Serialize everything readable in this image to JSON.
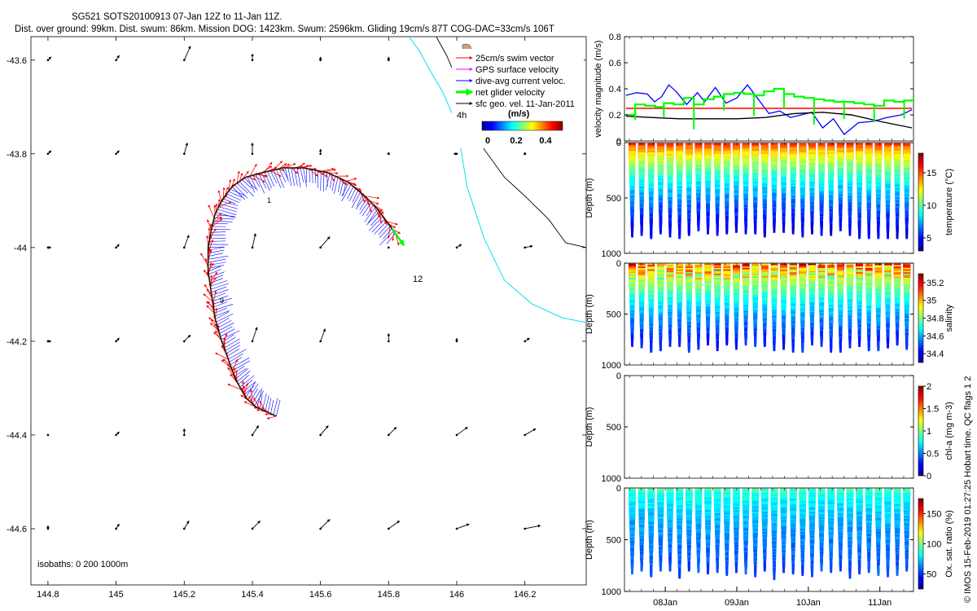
{
  "title": {
    "line1": "SG521 SOTS20100913 07-Jan 12Z to 11-Jan 11Z.",
    "line2": "Dist. over ground: 99km. Dist. swum: 86km. Mission DOG: 1423km. Swum: 2596km. Gliding 19cm/s 87T COG-DAC=33cm/s 106T"
  },
  "credit": "© IMOS 15-Feb-2019 01:27:25 Hobart time. QC flags 1  2",
  "colors": {
    "swim": "#ff0000",
    "gps": "#ff00ff",
    "dac": "#0000ff",
    "net": "#00ff00",
    "geo": "#000000",
    "isobath200": "#00e5ee",
    "isobath1000": "#000000",
    "track": "#2a1a00",
    "land": "#c8a27a"
  },
  "chart_data": [
    {
      "type": "scatter",
      "name": "track-map",
      "xlim": [
        144.75,
        146.38
      ],
      "ylim": [
        -44.72,
        -43.55
      ],
      "xticks": [
        "144.8",
        "145",
        "145.2",
        "145.4",
        "145.6",
        "145.8",
        "146",
        "146.2"
      ],
      "xtick_values": [
        144.8,
        145.0,
        145.2,
        145.4,
        145.6,
        145.8,
        146.0,
        146.2
      ],
      "yticks": [
        "-43.6",
        "-43.8",
        "-44",
        "-44.2",
        "-44.4",
        "-44.6"
      ],
      "ytick_values": [
        -43.6,
        -43.8,
        -44.0,
        -44.2,
        -44.4,
        -44.6
      ],
      "track": {
        "lon": [
          145.47,
          145.44,
          145.41,
          145.38,
          145.35,
          145.33,
          145.31,
          145.29,
          145.28,
          145.27,
          145.27,
          145.28,
          145.29,
          145.31,
          145.34,
          145.38,
          145.43,
          145.49,
          145.55,
          145.62,
          145.68,
          145.73,
          145.77,
          145.8,
          145.82
        ],
        "lat": [
          -44.36,
          -44.35,
          -44.34,
          -44.32,
          -44.28,
          -44.24,
          -44.2,
          -44.15,
          -44.1,
          -44.05,
          -44.0,
          -43.96,
          -43.93,
          -43.9,
          -43.87,
          -43.85,
          -43.84,
          -43.83,
          -43.83,
          -43.84,
          -43.86,
          -43.89,
          -43.92,
          -43.95,
          -43.97
        ]
      },
      "isobath200": {
        "lon": [
          145.86,
          145.89,
          145.92,
          145.96,
          145.99,
          146.01,
          146.03,
          146.08,
          146.14,
          146.22,
          146.31,
          146.38
        ],
        "lat": [
          -43.55,
          -43.58,
          -43.62,
          -43.67,
          -43.72,
          -43.78,
          -43.87,
          -43.98,
          -44.07,
          -44.12,
          -44.15,
          -44.16
        ]
      },
      "isobath1000": {
        "lon": [
          145.94,
          145.97,
          146.0,
          146.04,
          146.08,
          146.14,
          146.2,
          146.27,
          146.32,
          146.38
        ],
        "lat": [
          -43.55,
          -43.59,
          -43.64,
          -43.7,
          -43.79,
          -43.85,
          -43.89,
          -43.94,
          -43.99,
          -44.0
        ]
      },
      "geo_vectors": {
        "lon": [
          144.8,
          145.0,
          145.2,
          145.4,
          145.6,
          145.8,
          146.0,
          146.2
        ],
        "lat": [
          -43.6,
          -43.8,
          -44.0,
          -44.2,
          -44.4,
          -44.6
        ],
        "u": [
          [
            0.02,
            0.02,
            0.04,
            0.0,
            0.0,
            0.0,
            -0.02,
            0.0
          ],
          [
            0.02,
            0.02,
            0.02,
            0.0,
            0.0,
            0.0,
            -0.02,
            0.0
          ],
          [
            0.02,
            0.02,
            0.03,
            0.02,
            0.06,
            0.0,
            0.03,
            0.05
          ],
          [
            0.02,
            0.02,
            0.04,
            0.03,
            0.03,
            0.0,
            0.0,
            0.03
          ],
          [
            0.0,
            0.02,
            0.0,
            0.04,
            0.05,
            0.05,
            0.07,
            0.07
          ],
          [
            0.0,
            0.02,
            0.03,
            0.05,
            0.06,
            0.07,
            0.08,
            0.1
          ]
        ],
        "v": [
          [
            0.02,
            0.03,
            0.09,
            0.04,
            0.02,
            0.02,
            0.01,
            0.02
          ],
          [
            0.02,
            0.02,
            0.07,
            0.07,
            0.03,
            0.01,
            0.0,
            0.01
          ],
          [
            0.0,
            0.02,
            0.08,
            0.09,
            0.07,
            0.0,
            0.02,
            0.01
          ],
          [
            0.0,
            0.02,
            0.04,
            0.09,
            0.08,
            0.05,
            0.02,
            0.02
          ],
          [
            0.0,
            0.02,
            0.04,
            0.06,
            0.06,
            0.05,
            0.05,
            0.04
          ],
          [
            0.02,
            0.03,
            0.05,
            0.05,
            0.06,
            0.05,
            0.03,
            0.02
          ]
        ]
      },
      "legend": {
        "items": [
          "25cm/s swim vector",
          "GPS surface velocity",
          "dive-avg current veloc.",
          "net glider velocity",
          "sfc geo. vel. 11-Jan-2011"
        ],
        "colorbar_label": "(m/s)",
        "colorbar_ticks": [
          "0",
          "0.2",
          "0.4"
        ],
        "scale_label": "4h"
      },
      "annotations": [
        "12",
        "9",
        "1"
      ],
      "isobaths_label": "isobaths: 0   200  1000m"
    },
    {
      "type": "line",
      "name": "velocity-magnitude",
      "ylabel": "velocity magnitude (m/s)",
      "ylim": [
        0,
        0.8
      ],
      "yticks": [
        "0",
        "0.2",
        "0.4",
        "0.6",
        "0.8"
      ],
      "xlim": [
        7.43,
        11.47
      ],
      "series": [
        {
          "name": "dive-avg current",
          "color": "#0000ff",
          "x": [
            7.45,
            7.6,
            7.75,
            7.85,
            7.95,
            8.05,
            8.15,
            8.3,
            8.45,
            8.55,
            8.7,
            8.85,
            9.0,
            9.15,
            9.3,
            9.45,
            9.6,
            9.75,
            9.9,
            10.05,
            10.2,
            10.35,
            10.5,
            10.7,
            10.9,
            11.1,
            11.3,
            11.45
          ],
          "y": [
            0.35,
            0.37,
            0.36,
            0.3,
            0.34,
            0.43,
            0.38,
            0.28,
            0.37,
            0.3,
            0.41,
            0.29,
            0.33,
            0.43,
            0.32,
            0.21,
            0.23,
            0.18,
            0.2,
            0.22,
            0.1,
            0.17,
            0.05,
            0.14,
            0.15,
            0.18,
            0.2,
            0.24
          ]
        },
        {
          "name": "swim",
          "color": "#ff0000",
          "x": [
            7.45,
            11.45
          ],
          "y": [
            0.25,
            0.25
          ]
        },
        {
          "name": "sfc geo",
          "color": "#000000",
          "x": [
            7.45,
            7.8,
            8.2,
            8.6,
            9.0,
            9.4,
            9.8,
            10.2,
            10.6,
            11.0,
            11.45
          ],
          "y": [
            0.19,
            0.18,
            0.17,
            0.17,
            0.17,
            0.18,
            0.21,
            0.22,
            0.2,
            0.15,
            0.1
          ]
        },
        {
          "name": "net glider",
          "color": "#00ff00",
          "x": [
            7.45,
            7.58,
            7.72,
            7.86,
            7.98,
            8.12,
            8.26,
            8.4,
            8.54,
            8.68,
            8.82,
            8.96,
            9.1,
            9.24,
            9.38,
            9.52,
            9.66,
            9.8,
            9.94,
            10.08,
            10.22,
            10.36,
            10.5,
            10.64,
            10.78,
            10.92,
            11.06,
            11.2,
            11.34,
            11.47
          ],
          "y": [
            0.2,
            0.28,
            0.27,
            0.26,
            0.29,
            0.28,
            0.33,
            0.28,
            0.32,
            0.34,
            0.36,
            0.37,
            0.36,
            0.35,
            0.38,
            0.4,
            0.36,
            0.34,
            0.33,
            0.32,
            0.31,
            0.3,
            0.3,
            0.29,
            0.28,
            0.27,
            0.31,
            0.3,
            0.31,
            0.32
          ]
        }
      ]
    },
    {
      "type": "heatmap",
      "name": "temperature-section",
      "ylabel": "Depth (m)",
      "ylim": [
        1000,
        0
      ],
      "yticks": [
        "0",
        "500",
        "1000"
      ],
      "colorbar_label": "temperature (°C)",
      "clim": [
        3,
        18
      ],
      "colorbar_ticks": [
        "5",
        "10",
        "15"
      ],
      "colorbar_values": [
        5,
        10,
        15
      ],
      "surface_value": 16.5,
      "deep_value": 4.5,
      "dives": 30,
      "max_depth": 750
    },
    {
      "type": "heatmap",
      "name": "salinity-section",
      "ylabel": "Depth (m)",
      "ylim": [
        1000,
        0
      ],
      "yticks": [
        "0",
        "500",
        "1000"
      ],
      "colorbar_label": "salinity",
      "clim": [
        34.3,
        35.3
      ],
      "colorbar_ticks": [
        "34.4",
        "34.6",
        "34.8",
        "35",
        "35.2"
      ],
      "colorbar_values": [
        34.4,
        34.6,
        34.8,
        35.0,
        35.2
      ],
      "surface_value": 35.15,
      "deep_value": 34.45,
      "dives": 30,
      "max_depth": 750
    },
    {
      "type": "heatmap",
      "name": "chla-section",
      "ylabel": "Depth (m)",
      "ylim": [
        1000,
        0
      ],
      "yticks": [
        "0",
        "500",
        "1000"
      ],
      "colorbar_label": "chl-a (mg m-3)",
      "clim": [
        0,
        2
      ],
      "colorbar_ticks": [
        "0",
        "0.5",
        "1",
        "1.5",
        "2"
      ],
      "colorbar_values": [
        0,
        0.5,
        1,
        1.5,
        2
      ],
      "dives": 0
    },
    {
      "type": "heatmap",
      "name": "oxygen-section",
      "ylabel": "Depth (m)",
      "ylim": [
        1000,
        0
      ],
      "yticks": [
        "0",
        "500",
        "1000"
      ],
      "colorbar_label": "Ox. sat. ratio (%)",
      "clim": [
        25,
        175
      ],
      "colorbar_ticks": [
        "50",
        "100",
        "150"
      ],
      "colorbar_values": [
        50,
        100,
        150
      ],
      "surface_value": 95,
      "deep_value": 55,
      "dives": 30,
      "max_depth": 750
    },
    {
      "type": "line",
      "name": "time-axis",
      "xlim": [
        7.43,
        11.47
      ],
      "xticks": [
        "08Jan",
        "09Jan",
        "10Jan",
        "11Jan"
      ],
      "xtick_values": [
        8.0,
        9.0,
        10.0,
        11.0
      ]
    }
  ]
}
